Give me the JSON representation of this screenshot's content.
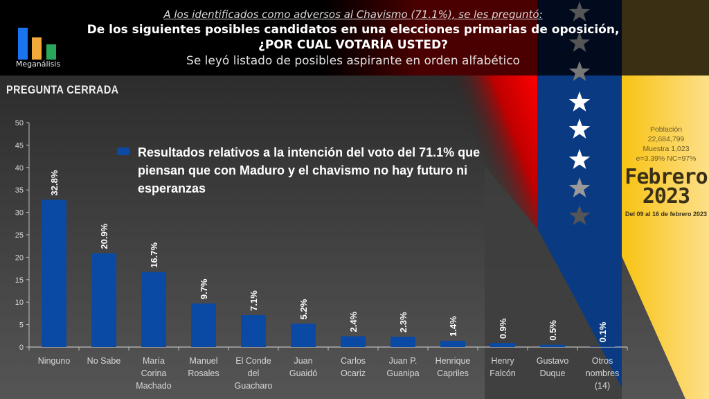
{
  "header": {
    "logo_text": "Meganálisis",
    "logo_colors": [
      "#1a73f0",
      "#f2a93b",
      "#27a85a"
    ],
    "intro": "A los identificados como adversos al Chavismo (71.1%), se les preguntó:",
    "question_line1": "De los siguientes posibles candidatos en una elecciones primarias de oposición,",
    "question_line2": "¿POR CUAL VOTARÍA USTED?",
    "note": "Se leyó listado de posibles aspirante en orden alfabético"
  },
  "subtitle": "PREGUNTA  CERRADA",
  "info_panel": {
    "population_label": "Población",
    "population_value": "22,684,799",
    "sample": "Muestra 1,023",
    "error_confidence": "e=3.39%  NC=97%",
    "month": "Febrero",
    "year": "2023",
    "date_range": "Del 09 al 16 de febrero 2023"
  },
  "colors": {
    "bar": "#0a4aa5",
    "flag_yellow": "#f6c21c",
    "flag_blue": "#0a3b82",
    "flag_red": "#e00000"
  },
  "chart_data": {
    "type": "bar",
    "title": "",
    "legend": [
      "Resultados relativos a la intención del  voto del 71.1% que piensan que con Maduro y el chavismo no hay futuro ni esperanzas"
    ],
    "legend_position": "top-center",
    "xlabel": "",
    "ylabel": "",
    "ylim": [
      0,
      50
    ],
    "yticks": [
      0,
      5,
      10,
      15,
      20,
      25,
      30,
      35,
      40,
      45,
      50
    ],
    "grid": false,
    "categories": [
      [
        "Ninguno"
      ],
      [
        "No Sabe"
      ],
      [
        "María",
        "Corina",
        "Machado"
      ],
      [
        "Manuel",
        "Rosales"
      ],
      [
        "El Conde",
        "del",
        "Guacharo"
      ],
      [
        "Juan",
        "Guaidó"
      ],
      [
        "Carlos",
        "Ocariz"
      ],
      [
        "Juan P.",
        "Guanipa"
      ],
      [
        "Henrique",
        "Capriles"
      ],
      [
        "Henry",
        "Falcón"
      ],
      [
        "Gustavo",
        "Duque"
      ],
      [
        "Otros",
        "nombres",
        "(14)"
      ]
    ],
    "values": [
      32.8,
      20.9,
      16.7,
      9.7,
      7.1,
      5.2,
      2.4,
      2.3,
      1.4,
      0.9,
      0.5,
      0.1
    ],
    "data_labels": [
      "32.8%",
      "20.9%",
      "16.7%",
      "9.7%",
      "7.1%",
      "5.2%",
      "2.4%",
      "2.3%",
      "1.4%",
      "0.9%",
      "0.5%",
      "0.1%"
    ]
  }
}
